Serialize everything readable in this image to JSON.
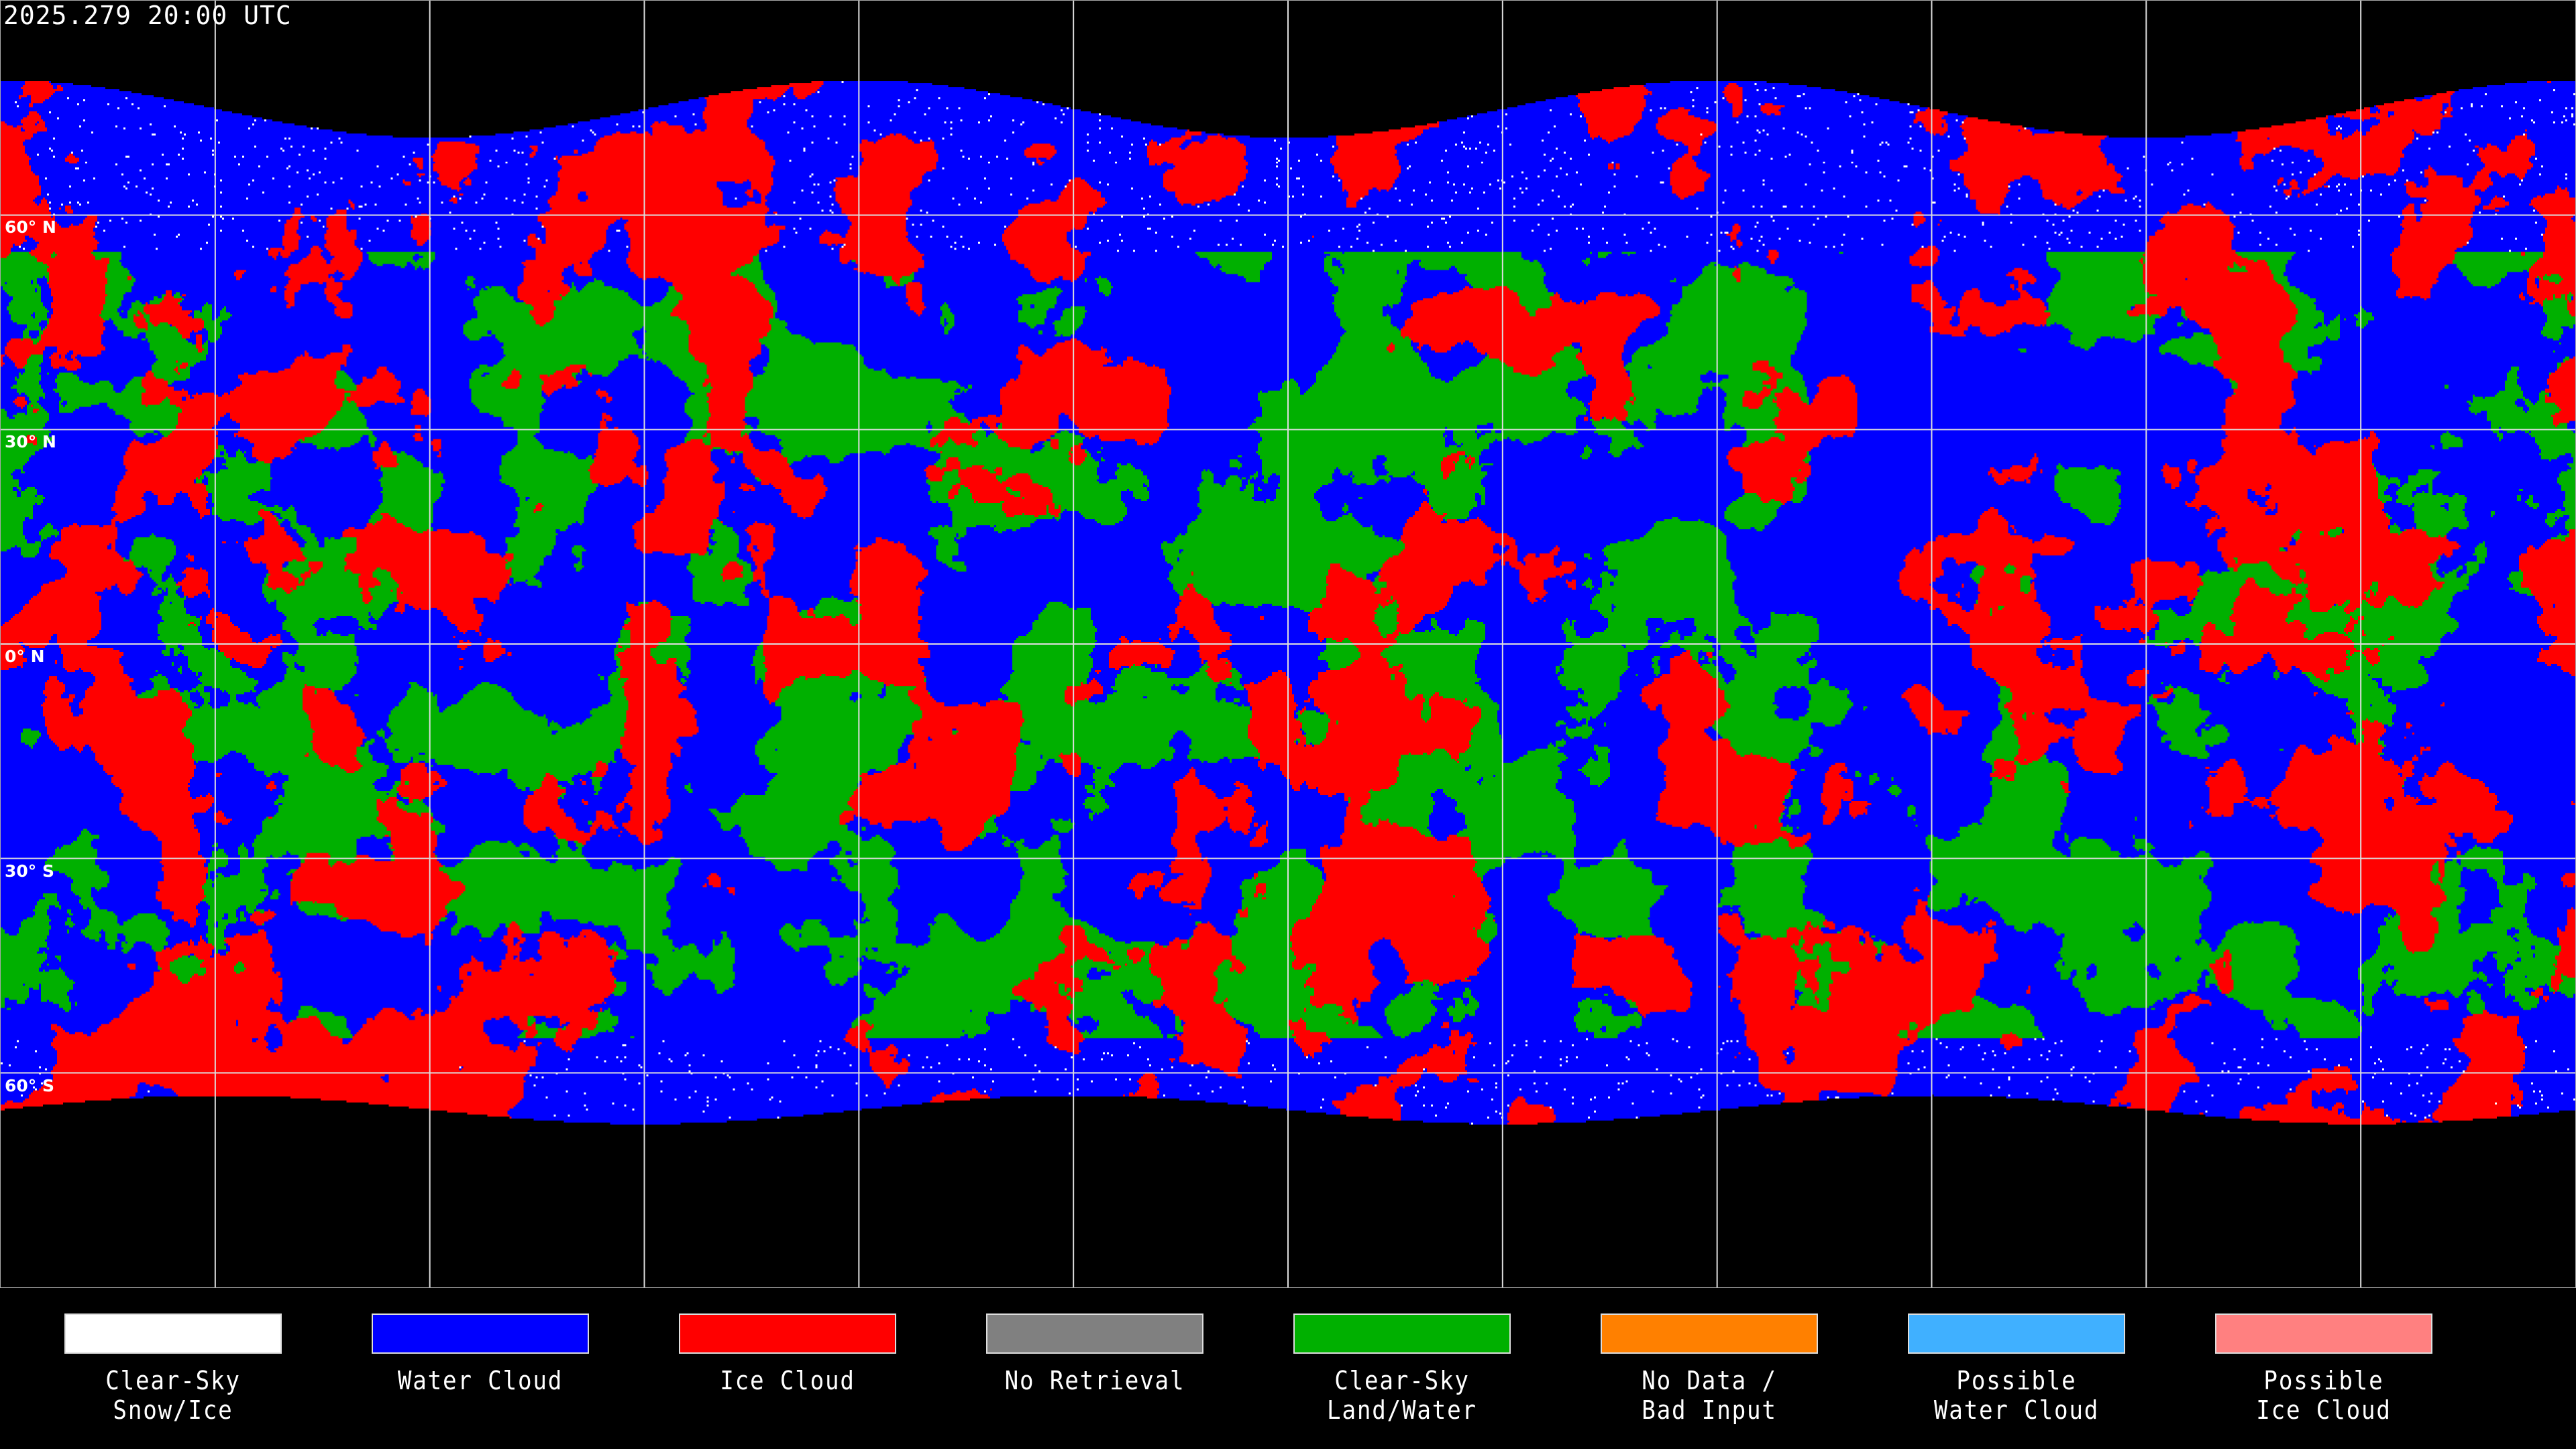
{
  "title": "2025.279 20:00 UTC",
  "map": {
    "projection": "equirectangular",
    "grid_spacing_deg": 30,
    "lat_labels": [
      "60° N",
      "30° N",
      "0° N",
      "30° S",
      "60° S"
    ]
  },
  "legend": [
    {
      "label": "Clear-Sky\nSnow/Ice",
      "color": "#ffffff"
    },
    {
      "label": "Water Cloud",
      "color": "#0000ff"
    },
    {
      "label": "Ice Cloud",
      "color": "#ff0000"
    },
    {
      "label": "No Retrieval",
      "color": "#808080"
    },
    {
      "label": "Clear-Sky\nLand/Water",
      "color": "#00b000"
    },
    {
      "label": "No Data /\nBad Input",
      "color": "#ff8000"
    },
    {
      "label": "Possible\nWater Cloud",
      "color": "#40b0ff"
    },
    {
      "label": "Possible\nIce Cloud",
      "color": "#ff8080"
    }
  ]
}
